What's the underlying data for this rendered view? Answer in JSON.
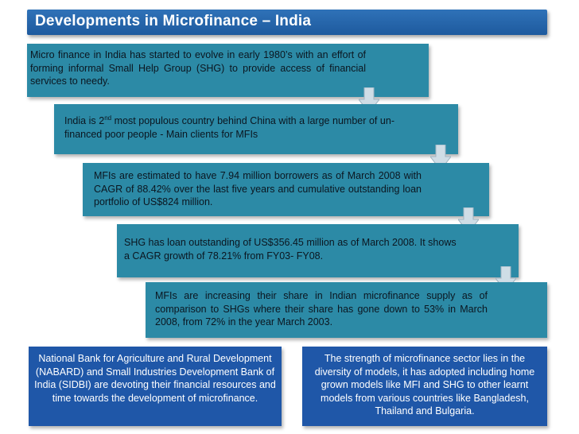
{
  "title": "Developments in Microfinance – India",
  "steps": [
    {
      "text": "Micro finance in India has started to evolve in early 1980’s with an effort of forming informal Small Help Group (SHG) to provide access of financial services to  needy."
    },
    {
      "text_before": "India is 2",
      "text_sup": "nd",
      "text_after": " most populous country behind China with a large number of un-financed poor people - Main clients for MFIs"
    },
    {
      "text": "MFIs are estimated to have 7.94 million borrowers as of March 2008 with CAGR of 88.42% over the last five years and cumulative outstanding loan portfolio of US$824 million."
    },
    {
      "text": "SHG has loan outstanding of US$356.45 million as of March 2008. It shows a CAGR growth of 78.21% from FY03- FY08."
    },
    {
      "text": "MFIs are increasing their share in Indian microfinance supply as of comparison to SHGs where their share has gone down to 53% in March 2008, from 72% in the year March 2003."
    }
  ],
  "bottom_left": "National Bank for Agriculture and Rural Development (NABARD) and Small Industries Development Bank of India (SIDBI) are devoting their financial resources and time towards the development of microfinance.",
  "bottom_right": "The strength of microfinance sector lies in the diversity of models, it has adopted including home grown models like MFI and SHG to other learnt models from various countries like Bangladesh, Thailand and Bulgaria.",
  "colors": {
    "title_bar": "#1e5a9e",
    "step_box": "#2c8aa6",
    "bottom_box": "#1f57a8",
    "arrow": "#cfdde6"
  }
}
